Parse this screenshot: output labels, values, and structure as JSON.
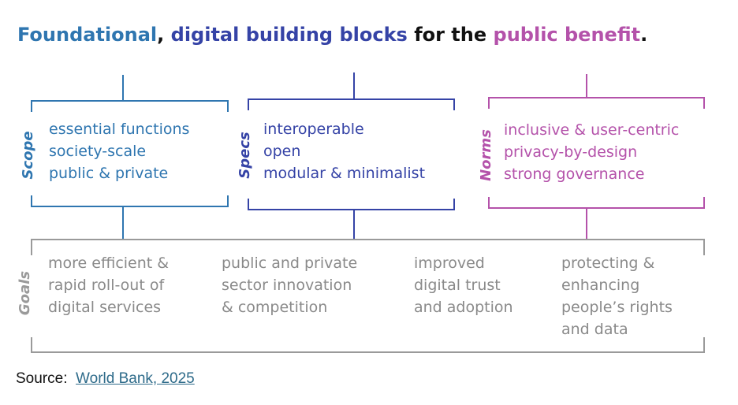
{
  "title": {
    "part1": "Foundational",
    "part2": ",",
    "part3": "digital building blocks",
    "part4": "for the",
    "part5": "public benefit",
    "part6": "."
  },
  "colors": {
    "scope": "#2f76b0",
    "specs": "#3543a6",
    "norms": "#b452aa",
    "goals": "#9a9a9a",
    "title_dark": "#111111"
  },
  "scope": {
    "label": "Scope",
    "items": [
      "essential functions",
      "society-scale",
      "public & private"
    ]
  },
  "specs": {
    "label": "Specs",
    "items": [
      "interoperable",
      "open",
      "modular & minimalist"
    ]
  },
  "norms": {
    "label": "Norms",
    "items": [
      "inclusive & user-centric",
      "privacy-by-design",
      "strong governance"
    ]
  },
  "goals": {
    "label": "Goals",
    "columns": [
      [
        "more efficient &",
        "rapid roll-out of",
        "digital services"
      ],
      [
        "public and private",
        "sector innovation",
        "& competition"
      ],
      [
        "improved",
        "digital trust",
        "and adoption"
      ],
      [
        "protecting &",
        "enhancing",
        "people’s rights",
        "and data"
      ]
    ]
  },
  "source": {
    "label": "Source:",
    "link_text": "World Bank, 2025"
  }
}
